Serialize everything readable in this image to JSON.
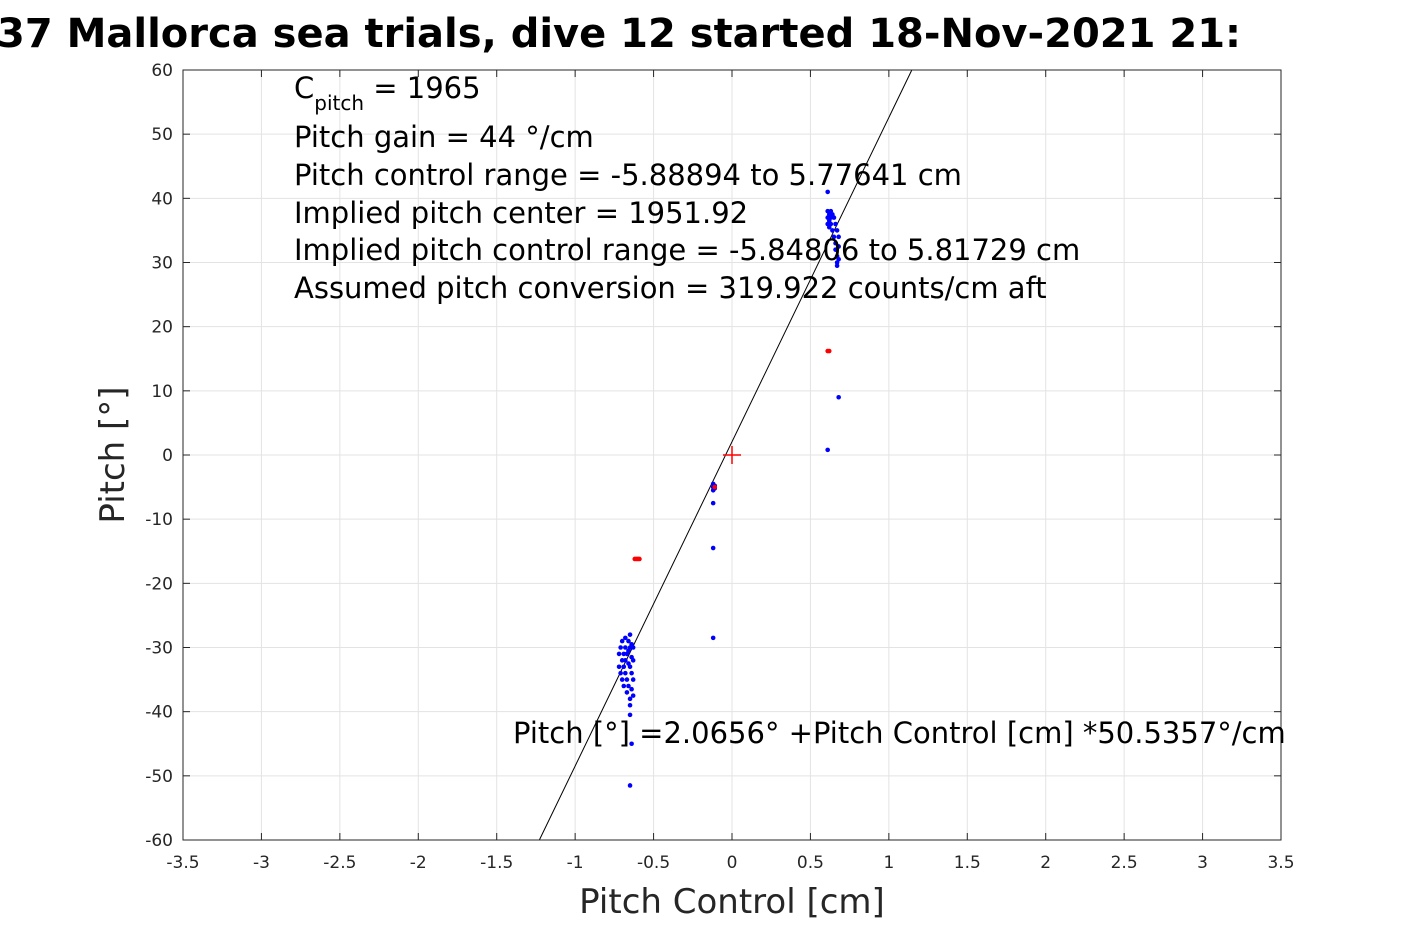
{
  "title": "37 Mallorca sea trials, dive 12 started 18-Nov-2021 21:",
  "chart_data": {
    "type": "scatter",
    "title": "37 Mallorca sea trials, dive 12 started 18-Nov-2021 21:",
    "xlabel": "Pitch Control [cm]",
    "ylabel": "Pitch [°]",
    "xlim": [
      -3.5,
      3.5
    ],
    "ylim": [
      -60,
      60
    ],
    "xticks": [
      -3.5,
      -3,
      -2.5,
      -2,
      -1.5,
      -1,
      -0.5,
      0,
      0.5,
      1,
      1.5,
      2,
      2.5,
      3,
      3.5
    ],
    "yticks": [
      -60,
      -50,
      -40,
      -30,
      -20,
      -10,
      0,
      10,
      20,
      30,
      40,
      50,
      60
    ],
    "xtick_labels": [
      "-3.5",
      "-3",
      "-2.5",
      "-2",
      "-1.5",
      "-1",
      "-0.5",
      "0",
      "0.5",
      "1",
      "1.5",
      "2",
      "2.5",
      "3",
      "3.5"
    ],
    "ytick_labels": [
      "-60",
      "-50",
      "-40",
      "-30",
      "-20",
      "-10",
      "0",
      "10",
      "20",
      "30",
      "40",
      "50",
      "60"
    ],
    "grid": true,
    "annotations": {
      "c_pitch_main": "C",
      "c_pitch_sub": "pitch",
      "c_pitch_value": " = 1965",
      "lines": [
        "Pitch gain = 44 °/cm",
        "Pitch control range = -5.88894 to 5.77641 cm",
        "Implied pitch center = 1951.92",
        "Implied pitch control range = -5.84806 to 5.81729 cm",
        "Assumed pitch conversion = 319.922 counts/cm aft"
      ],
      "fit_label": "Pitch [°] =2.0656° +Pitch Control [cm] *50.5357°/cm"
    },
    "fit_line": {
      "intercept": 2.0656,
      "slope": 50.5357
    },
    "center_marker": {
      "x": 0,
      "y": 0,
      "color": "#ff0000"
    },
    "series": [
      {
        "color": "#0000ff",
        "points": [
          [
            -0.72,
            -31
          ],
          [
            -0.72,
            -33
          ],
          [
            -0.71,
            -34
          ],
          [
            -0.71,
            -30
          ],
          [
            -0.7,
            -32
          ],
          [
            -0.7,
            -35
          ],
          [
            -0.7,
            -29
          ],
          [
            -0.69,
            -31
          ],
          [
            -0.69,
            -33
          ],
          [
            -0.69,
            -36
          ],
          [
            -0.68,
            -30
          ],
          [
            -0.68,
            -32
          ],
          [
            -0.68,
            -34
          ],
          [
            -0.68,
            -28.5
          ],
          [
            -0.67,
            -31
          ],
          [
            -0.67,
            -35
          ],
          [
            -0.67,
            -37
          ],
          [
            -0.66,
            -29
          ],
          [
            -0.66,
            -30.5
          ],
          [
            -0.66,
            -32.5
          ],
          [
            -0.66,
            -36
          ],
          [
            -0.65,
            -28
          ],
          [
            -0.65,
            -30
          ],
          [
            -0.65,
            -33
          ],
          [
            -0.65,
            -38
          ],
          [
            -0.65,
            -39
          ],
          [
            -0.64,
            -29.5
          ],
          [
            -0.64,
            -31.5
          ],
          [
            -0.64,
            -34
          ],
          [
            -0.64,
            -36.5
          ],
          [
            -0.63,
            -30
          ],
          [
            -0.63,
            -32
          ],
          [
            -0.63,
            -35
          ],
          [
            -0.63,
            -37.5
          ],
          [
            -0.65,
            -40.5
          ],
          [
            -0.64,
            -45
          ],
          [
            -0.65,
            -51.5
          ],
          [
            -0.12,
            -4.5
          ],
          [
            -0.12,
            -5.0
          ],
          [
            -0.12,
            -5.5
          ],
          [
            -0.11,
            -4.8
          ],
          [
            -0.11,
            -5.2
          ],
          [
            -0.12,
            -7.5
          ],
          [
            -0.12,
            -14.5
          ],
          [
            -0.12,
            -28.5
          ],
          [
            0.61,
            41
          ],
          [
            0.61,
            38
          ],
          [
            0.61,
            37
          ],
          [
            0.61,
            36
          ],
          [
            0.62,
            37.5
          ],
          [
            0.62,
            36.5
          ],
          [
            0.62,
            35.5
          ],
          [
            0.63,
            38
          ],
          [
            0.63,
            37
          ],
          [
            0.63,
            36
          ],
          [
            0.64,
            37.5
          ],
          [
            0.64,
            35
          ],
          [
            0.65,
            37
          ],
          [
            0.65,
            34
          ],
          [
            0.66,
            36
          ],
          [
            0.66,
            33
          ],
          [
            0.66,
            32
          ],
          [
            0.67,
            35
          ],
          [
            0.67,
            31
          ],
          [
            0.67,
            30
          ],
          [
            0.67,
            29.5
          ],
          [
            0.68,
            34
          ],
          [
            0.68,
            32.5
          ],
          [
            0.68,
            30.5
          ],
          [
            0.68,
            9
          ],
          [
            0.61,
            0.8
          ]
        ]
      },
      {
        "color": "#ff0000",
        "points": [
          [
            -0.62,
            -16.2
          ],
          [
            -0.61,
            -16.2
          ],
          [
            -0.6,
            -16.2
          ],
          [
            -0.59,
            -16.2
          ],
          [
            0.61,
            16.2
          ],
          [
            0.62,
            16.2
          ],
          [
            -0.11,
            -5.0
          ]
        ]
      }
    ]
  }
}
